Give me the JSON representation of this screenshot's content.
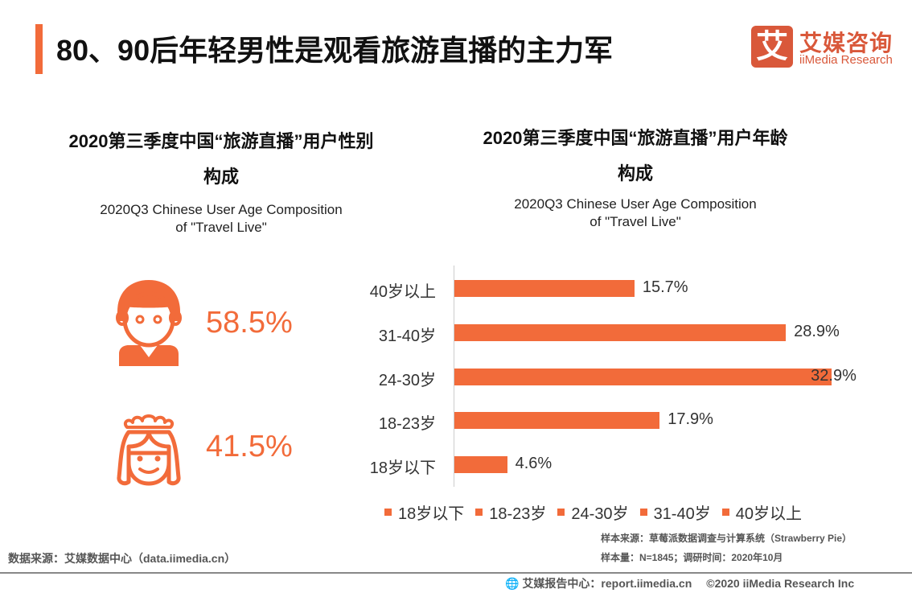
{
  "title": "80、90后年轻男性是观看旅游直播的主力军",
  "logo": {
    "icon_text": "艾",
    "cn": "艾媒咨询",
    "en": "iiMedia Research"
  },
  "left": {
    "title_line1": "2020第三季度中国“旅游直播”用户性别",
    "title_line2": "构成",
    "subtitle_line1": "2020Q3 Chinese User Age Composition",
    "subtitle_line2": "of \"Travel Live\"",
    "male_pct": "58.5%",
    "female_pct": "41.5%",
    "male_icon": "boy-icon",
    "female_icon": "princess-icon"
  },
  "chart_data": {
    "type": "bar",
    "orientation": "horizontal",
    "title_line1": "2020第三季度中国“旅游直播”用户年龄",
    "title_line2": "构成",
    "subtitle_line1": "2020Q3 Chinese User Age Composition",
    "subtitle_line2": "of \"Travel Live\"",
    "categories": [
      "40岁以上",
      "31-40岁",
      "24-30岁",
      "18-23岁",
      "18岁以下"
    ],
    "values": [
      15.7,
      28.9,
      32.9,
      17.9,
      4.6
    ],
    "labels": [
      "15.7%",
      "28.9%",
      "32.9%",
      "17.9%",
      "4.6%"
    ],
    "legend": [
      "18岁以下",
      "18-23岁",
      "24-30岁",
      "31-40岁",
      "40岁以上"
    ],
    "legend_placement": "bottom",
    "color": "#f26b3a",
    "grid": false
  },
  "footer": {
    "source_left": "数据来源：艾媒数据中心（data.iimedia.cn）",
    "sample_source": "样本来源：草莓派数据调查与计算系统（Strawberry Pie）",
    "sample_size": "样本量：N=1845；调研时间：2020年10月",
    "report": "艾媒报告中心：report.iimedia.cn",
    "copyright": "©2020  iiMedia Research  Inc"
  }
}
